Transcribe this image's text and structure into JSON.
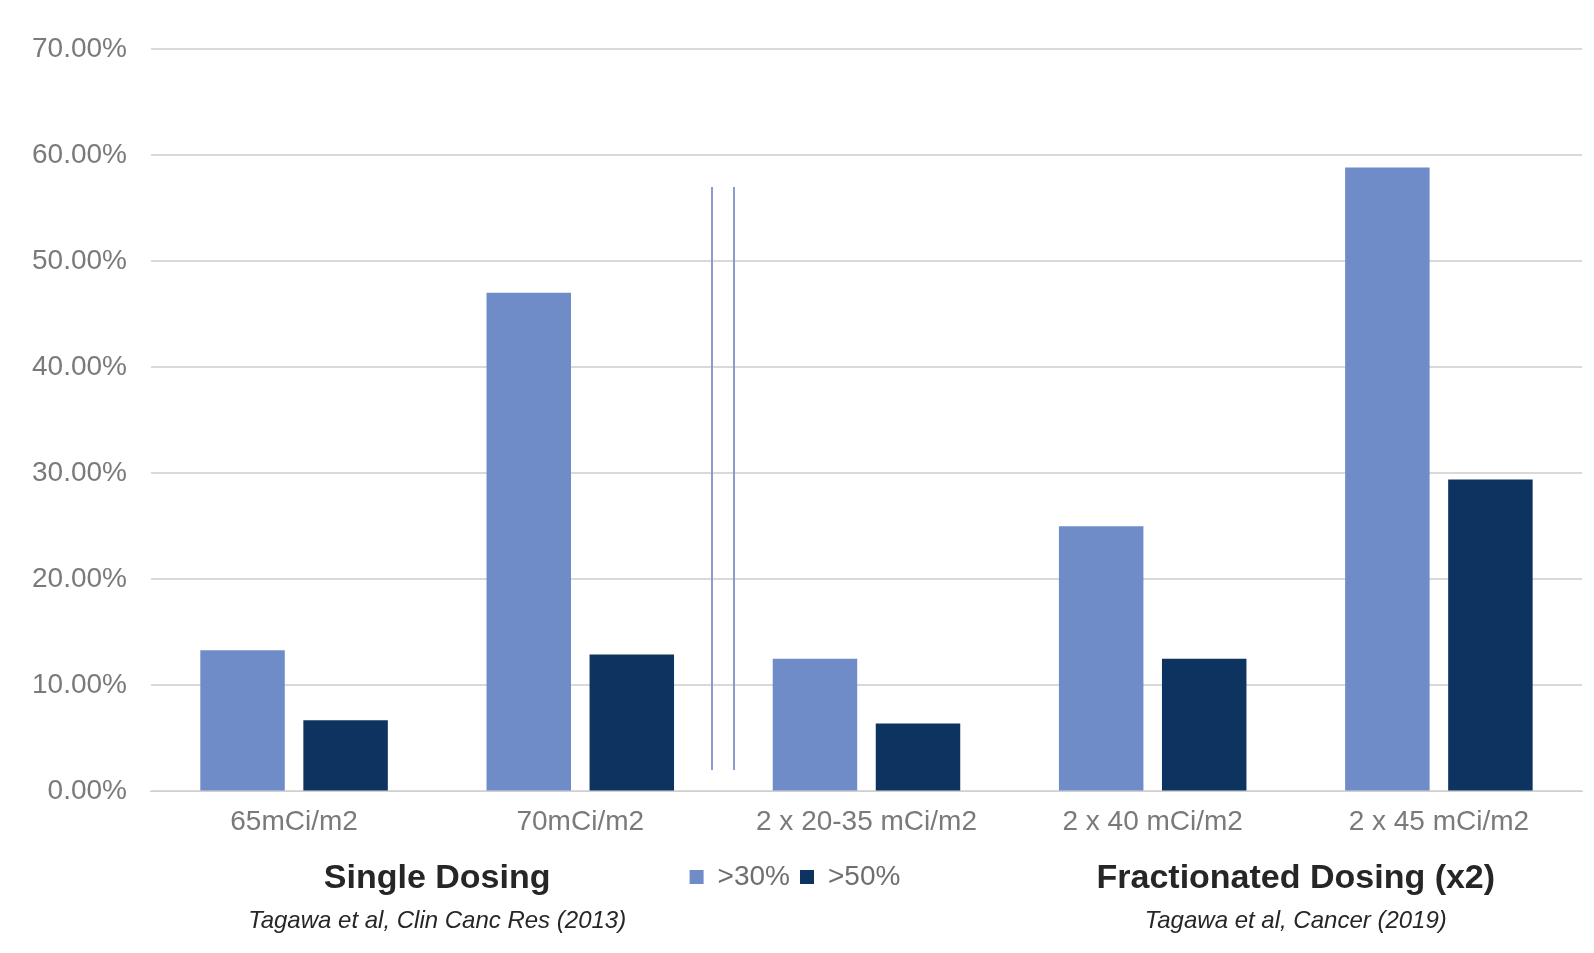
{
  "chart_data": {
    "type": "bar",
    "categories": [
      "65mCi/m2",
      "70mCi/m2",
      "2 x 20-35 mCi/m2",
      "2 x 40 mCi/m2",
      "2 x 45 mCi/m2"
    ],
    "series": [
      {
        "name": ">30%",
        "color": "#6f8cc8",
        "values": [
          13.3,
          47,
          12.5,
          25,
          58.8
        ]
      },
      {
        "name": ">50%",
        "color": "#0d3461",
        "values": [
          6.7,
          12.9,
          6.4,
          12.5,
          29.4
        ]
      }
    ],
    "ylim": [
      0,
      70
    ],
    "yticks": [
      {
        "value": 0,
        "label": "0.00%"
      },
      {
        "value": 10,
        "label": "10.00%"
      },
      {
        "value": 20,
        "label": "20.00%"
      },
      {
        "value": 30,
        "label": "30.00%"
      },
      {
        "value": 40,
        "label": "40.00%"
      },
      {
        "value": 50,
        "label": "50.00%"
      },
      {
        "value": 60,
        "label": "60.00%"
      },
      {
        "value": 70,
        "label": "70.00%"
      }
    ],
    "grid": "y",
    "legend": "bottom",
    "annotations": [
      "Single Dosing",
      "Tagawa et al, Clin Canc Res (2013)",
      "Fractionated Dosing (x2)",
      "Tagawa et al, Cancer (2019)"
    ]
  }
}
